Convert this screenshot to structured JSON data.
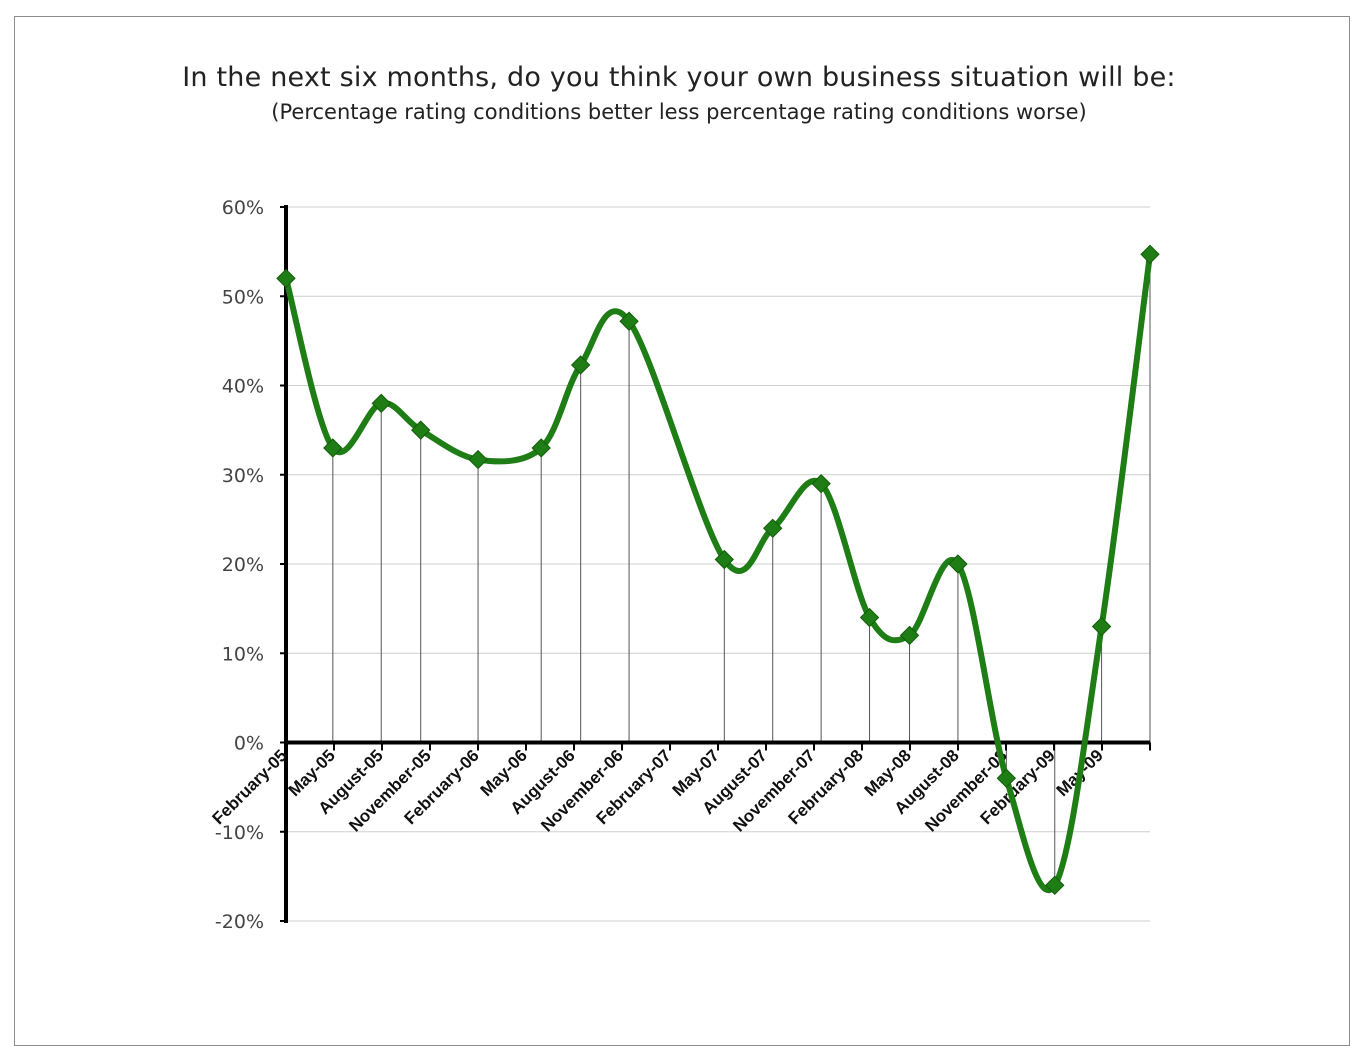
{
  "chart_data": {
    "type": "line",
    "title": "In the next six months, do you think your own business situation will be:",
    "subtitle": "(Percentage rating conditions better less percentage rating conditions worse)",
    "xlabel": "",
    "ylabel": "",
    "y_tick_labels": [
      "60%",
      "50%",
      "40%",
      "30%",
      "20%",
      "10%",
      "0%",
      "-10%",
      "-20%"
    ],
    "x_tick_labels": [
      "February-05",
      "May-05",
      "August-05",
      "November-05",
      "February-06",
      "May-06",
      "August-06",
      "November-06",
      "February-07",
      "May-07",
      "August-07",
      "November-07",
      "February-08",
      "May-08",
      "August-08",
      "November-08",
      "February-09",
      "May-09"
    ],
    "ylim": [
      -0.2,
      0.6
    ],
    "grid": true,
    "drop_lines": true,
    "line_style": "smooth",
    "series_color": "#1e7d14",
    "marker": "diamond",
    "series": [
      {
        "x": [
          "2005-02-01",
          "2005-05-01",
          "2005-08-01",
          "2005-10-15",
          "2006-02-01",
          "2006-06-01",
          "2006-08-15",
          "2006-11-15",
          "2007-05-15",
          "2007-08-15",
          "2007-11-15",
          "2008-02-15",
          "2008-05-01",
          "2008-08-01",
          "2008-11-01",
          "2009-02-01",
          "2009-05-01",
          "2009-08-01"
        ],
        "values": [
          0.52,
          0.33,
          0.38,
          0.35,
          0.317,
          0.33,
          0.423,
          0.472,
          0.205,
          0.24,
          0.29,
          0.14,
          0.12,
          0.2,
          -0.04,
          -0.16,
          0.13,
          0.547
        ]
      }
    ]
  }
}
